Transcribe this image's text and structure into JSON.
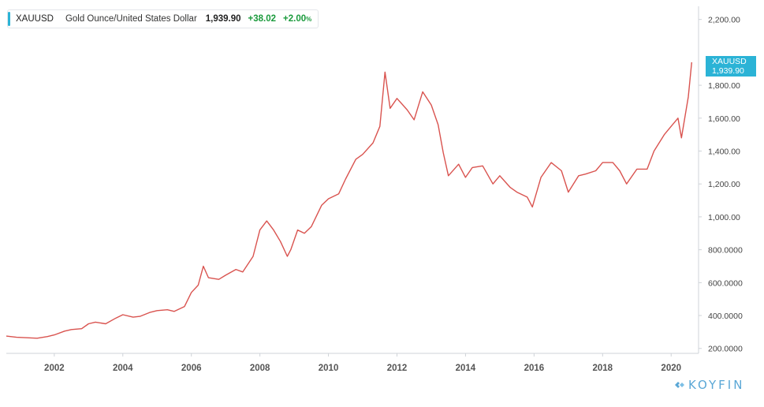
{
  "legend": {
    "symbol": "XAUUSD",
    "description": "Gold Ounce/United States Dollar",
    "last": "1,939.90",
    "change": "+38.02",
    "change_pct": "+2.00",
    "pct_sign": "%"
  },
  "price_tag": {
    "symbol": "XAUUSD",
    "value": "1,939.90"
  },
  "brand": "KOYFIN",
  "colors": {
    "line": "#d9534f",
    "accent": "#2bb3d6",
    "positive": "#1a9a3c"
  },
  "chart_data": {
    "type": "line",
    "title": "",
    "xlabel": "",
    "ylabel": "",
    "series": [
      {
        "name": "XAUUSD",
        "x": [
          2000.6,
          2000.9,
          2001.2,
          2001.5,
          2001.8,
          2002.0,
          2002.3,
          2002.5,
          2002.8,
          2003.0,
          2003.2,
          2003.5,
          2003.8,
          2004.0,
          2004.3,
          2004.5,
          2004.8,
          2005.0,
          2005.3,
          2005.5,
          2005.8,
          2006.0,
          2006.2,
          2006.35,
          2006.5,
          2006.8,
          2007.0,
          2007.3,
          2007.5,
          2007.8,
          2008.0,
          2008.2,
          2008.4,
          2008.6,
          2008.8,
          2008.9,
          2009.1,
          2009.3,
          2009.5,
          2009.8,
          2010.0,
          2010.3,
          2010.5,
          2010.8,
          2011.0,
          2011.3,
          2011.5,
          2011.65,
          2011.8,
          2012.0,
          2012.3,
          2012.5,
          2012.75,
          2013.0,
          2013.2,
          2013.35,
          2013.5,
          2013.8,
          2014.0,
          2014.2,
          2014.5,
          2014.8,
          2015.0,
          2015.3,
          2015.5,
          2015.8,
          2015.95,
          2016.2,
          2016.5,
          2016.8,
          2017.0,
          2017.3,
          2017.5,
          2017.8,
          2018.0,
          2018.3,
          2018.5,
          2018.7,
          2019.0,
          2019.3,
          2019.5,
          2019.8,
          2020.0,
          2020.2,
          2020.3,
          2020.5,
          2020.6
        ],
        "values": [
          275,
          268,
          265,
          262,
          272,
          282,
          305,
          315,
          320,
          350,
          360,
          350,
          385,
          405,
          390,
          395,
          420,
          430,
          435,
          425,
          455,
          540,
          585,
          700,
          630,
          620,
          645,
          680,
          665,
          760,
          920,
          975,
          920,
          850,
          760,
          800,
          920,
          900,
          940,
          1070,
          1110,
          1140,
          1230,
          1350,
          1380,
          1450,
          1550,
          1880,
          1660,
          1720,
          1650,
          1590,
          1760,
          1680,
          1560,
          1390,
          1250,
          1320,
          1240,
          1300,
          1310,
          1200,
          1250,
          1180,
          1150,
          1120,
          1060,
          1240,
          1330,
          1280,
          1150,
          1250,
          1260,
          1280,
          1330,
          1330,
          1280,
          1200,
          1290,
          1290,
          1400,
          1500,
          1550,
          1600,
          1480,
          1730,
          1939.9
        ]
      }
    ],
    "xlim": [
      2000.6,
      2020.8
    ],
    "ylim": [
      170,
      2280
    ],
    "x_ticks": [
      {
        "value": 2002,
        "label": "2002"
      },
      {
        "value": 2004,
        "label": "2004"
      },
      {
        "value": 2006,
        "label": "2006"
      },
      {
        "value": 2008,
        "label": "2008"
      },
      {
        "value": 2010,
        "label": "2010"
      },
      {
        "value": 2012,
        "label": "2012"
      },
      {
        "value": 2014,
        "label": "2014"
      },
      {
        "value": 2016,
        "label": "2016"
      },
      {
        "value": 2018,
        "label": "2018"
      },
      {
        "value": 2020,
        "label": "2020"
      }
    ],
    "y_ticks": [
      {
        "value": 2200,
        "label": "2,200.00"
      },
      {
        "value": 1800,
        "label": "1,800.00"
      },
      {
        "value": 1600,
        "label": "1,600.00"
      },
      {
        "value": 1400,
        "label": "1,400.00"
      },
      {
        "value": 1200,
        "label": "1,200.00"
      },
      {
        "value": 1000,
        "label": "1,000.00"
      },
      {
        "value": 800,
        "label": "800.0000"
      },
      {
        "value": 600,
        "label": "600.0000"
      },
      {
        "value": 400,
        "label": "400.0000"
      },
      {
        "value": 200,
        "label": "200.0000"
      }
    ],
    "grid": false,
    "legend": "top-left"
  }
}
